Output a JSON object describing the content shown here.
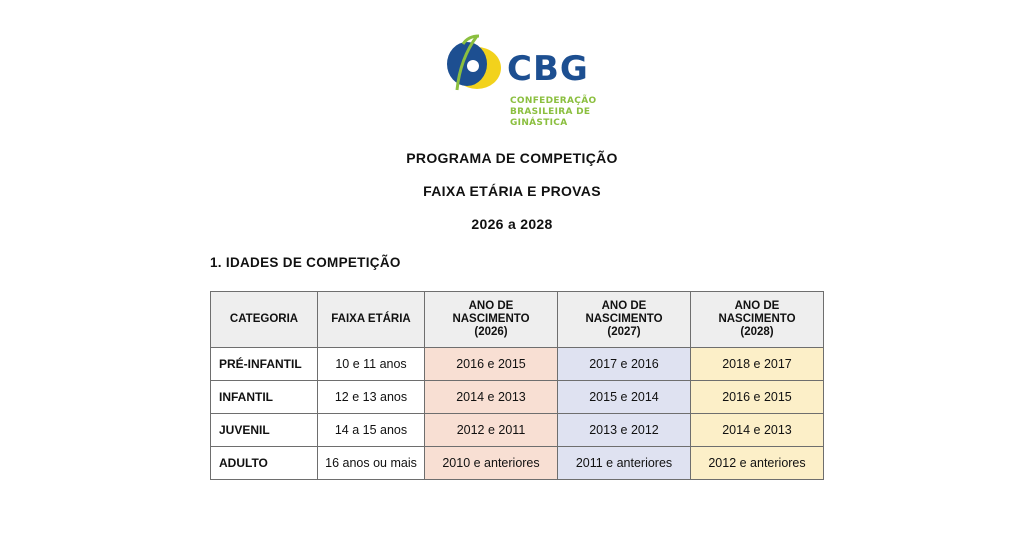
{
  "logo": {
    "wordmark": "CBG",
    "subtitle_lines": [
      "CONFEDERAÇÃO",
      "BRASILEIRA DE",
      "GINÁSTICA"
    ],
    "colors": {
      "blue": "#1d4f91",
      "yellow": "#f2d21c",
      "green": "#8bbf3f"
    }
  },
  "headings": {
    "line1": "PROGRAMA DE COMPETIÇÃO",
    "line2": "FAIXA ETÁRIA E PROVAS",
    "line3": "2026 a 2028"
  },
  "section": {
    "title": "1. IDADES DE COMPETIÇÃO"
  },
  "table": {
    "headers": {
      "categoria": "CATEGORIA",
      "faixa": "FAIXA ETÁRIA",
      "y2026": [
        "ANO DE",
        "NASCIMENTO",
        "(2026)"
      ],
      "y2027": [
        "ANO DE",
        "NASCIMENTO",
        "(2027)"
      ],
      "y2028": [
        "ANO DE",
        "NASCIMENTO",
        "(2028)"
      ]
    },
    "rows": [
      {
        "categoria": "PRÉ-INFANTIL",
        "faixa": "10 e 11 anos",
        "y2026": "2016 e 2015",
        "y2027": "2017 e 2016",
        "y2028": "2018 e 2017"
      },
      {
        "categoria": "INFANTIL",
        "faixa": "12 e 13 anos",
        "y2026": "2014 e 2013",
        "y2027": "2015 e 2014",
        "y2028": "2016 e 2015"
      },
      {
        "categoria": "JUVENIL",
        "faixa": "14 a 15 anos",
        "y2026": "2012 e 2011",
        "y2027": "2013 e 2012",
        "y2028": "2014 e 2013"
      },
      {
        "categoria": "ADULTO",
        "faixa": "16 anos ou mais",
        "y2026": "2010 e anteriores",
        "y2027": "2011 e anteriores",
        "y2028": "2012 e anteriores"
      }
    ],
    "column_colors": {
      "y2026": "#f8dfd3",
      "y2027": "#dfe2f1",
      "y2028": "#fcefc8",
      "header": "#eeeeee"
    }
  }
}
